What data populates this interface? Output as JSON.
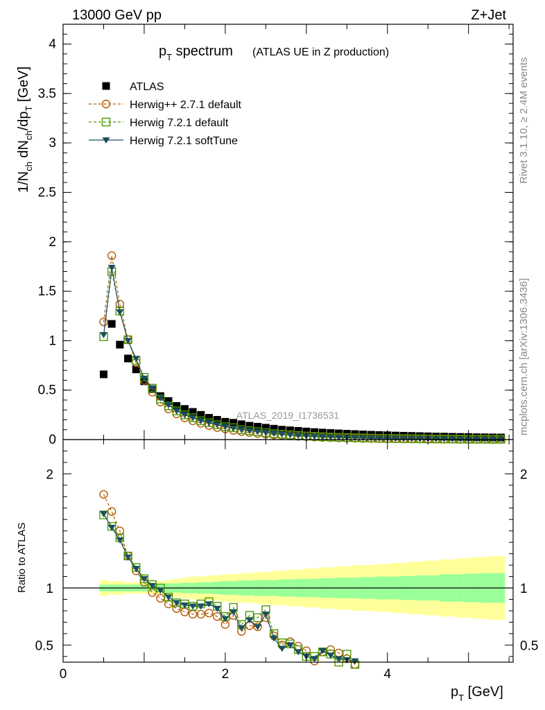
{
  "header": {
    "left": "13000 GeV pp",
    "right": "Z+Jet"
  },
  "side": {
    "rivet": "Rivet 3.1.10, ≥ 2.4M events",
    "mcplots": "mcplots.cern.ch [arXiv:1306.3436]"
  },
  "title": {
    "main": "p",
    "main_sub": "T",
    "main_rest": " spectrum",
    "extra": "(ATLAS UE in Z production)"
  },
  "watermark": "ATLAS_2019_I1736531",
  "axes": {
    "ylabel_main": {
      "a": "1/N",
      "b": "ch",
      "c": " dN",
      "d": "ch",
      "e": "/dp",
      "f": "T",
      "g": " [GeV]"
    },
    "ylabel_ratio": "Ratio to ATLAS",
    "xlabel": {
      "a": "p",
      "b": "T",
      "c": " [GeV]"
    },
    "xlim": [
      0,
      5.55
    ],
    "ylim_main": [
      0,
      4.2
    ],
    "ylim_ratio": [
      0.35,
      2.3
    ],
    "main_ticks": [
      "0",
      "0.5",
      "1",
      "1.5",
      "2",
      "2.5",
      "3",
      "3.5",
      "4"
    ],
    "ratio_ticks": [
      "0.5",
      "1",
      "2"
    ],
    "x_ticks": [
      "0",
      "2",
      "4"
    ]
  },
  "legend": [
    {
      "label": "ATLAS",
      "marker": "square-filled",
      "color": "#000000"
    },
    {
      "label": "Herwig++ 2.7.1 default",
      "marker": "circle-open",
      "color": "#b35900"
    },
    {
      "label": "Herwig 7.2.1 default",
      "marker": "square-open",
      "color": "#4d9900"
    },
    {
      "label": "Herwig 7.2.1 softTune",
      "marker": "triangle-down-filled",
      "color": "#1b4f5f"
    }
  ],
  "colors": {
    "band_outer": "#ffff99",
    "band_inner": "#99ff99"
  },
  "chart_data": {
    "type": "scatter",
    "x": [
      0.5,
      0.6,
      0.7,
      0.8,
      0.9,
      1.0,
      1.1,
      1.2,
      1.3,
      1.4,
      1.5,
      1.6,
      1.7,
      1.8,
      1.9,
      2.0,
      2.1,
      2.2,
      2.3,
      2.4,
      2.5,
      2.6,
      2.7,
      2.8,
      2.9,
      3.0,
      3.1,
      3.2,
      3.3,
      3.4,
      3.5,
      3.6,
      3.7,
      3.8,
      3.9,
      4.0,
      4.1,
      4.2,
      4.3,
      4.4,
      4.5,
      4.6,
      4.7,
      4.8,
      4.9,
      5.0,
      5.1,
      5.2,
      5.3,
      5.4
    ],
    "series": [
      {
        "name": "ATLAS",
        "values": [
          0.66,
          1.17,
          0.96,
          0.82,
          0.71,
          0.59,
          0.51,
          0.44,
          0.39,
          0.34,
          0.31,
          0.28,
          0.25,
          0.22,
          0.2,
          0.18,
          0.17,
          0.155,
          0.14,
          0.13,
          0.12,
          0.11,
          0.1,
          0.094,
          0.088,
          0.082,
          0.076,
          0.071,
          0.067,
          0.063,
          0.059,
          0.056,
          0.052,
          0.049,
          0.046,
          0.044,
          0.041,
          0.039,
          0.037,
          0.035,
          0.033,
          0.031,
          0.03,
          0.028,
          0.027,
          0.026,
          0.024,
          0.023,
          0.022,
          0.021
        ]
      },
      {
        "name": "Herwig++ 2.7.1 default",
        "values": [
          1.19,
          1.86,
          1.37,
          1.01,
          0.78,
          0.6,
          0.48,
          0.38,
          0.31,
          0.26,
          0.22,
          0.19,
          0.165,
          0.142,
          0.122,
          0.108,
          0.093,
          0.082,
          0.071,
          0.062,
          0.055,
          0.048,
          0.042,
          0.037,
          0.033,
          0.029,
          0.025,
          0.022,
          0.02,
          0.018,
          0.016,
          0.014,
          0.012,
          0.011,
          0.01,
          0.009,
          0.008,
          0.007,
          0.006,
          0.006,
          0.005,
          0.005,
          0.004,
          0.004,
          0.003,
          0.003,
          0.003,
          0.002,
          0.002,
          0.002
        ]
      },
      {
        "name": "Herwig 7.2.1 default",
        "values": [
          1.04,
          1.7,
          1.3,
          1.01,
          0.8,
          0.63,
          0.52,
          0.41,
          0.34,
          0.29,
          0.25,
          0.22,
          0.19,
          0.17,
          0.15,
          0.13,
          0.12,
          0.1,
          0.09,
          0.08,
          0.07,
          0.06,
          0.055,
          0.048,
          0.042,
          0.037,
          0.033,
          0.029,
          0.026,
          0.023,
          0.021,
          0.019,
          0.017,
          0.015,
          0.013,
          0.012,
          0.011,
          0.01,
          0.009,
          0.008,
          0.007,
          0.006,
          0.006,
          0.005,
          0.005,
          0.004,
          0.004,
          0.004,
          0.003,
          0.003
        ]
      },
      {
        "name": "Herwig 7.2.1 softTune",
        "values": [
          1.06,
          1.74,
          1.29,
          1.0,
          0.82,
          0.62,
          0.52,
          0.42,
          0.35,
          0.29,
          0.25,
          0.22,
          0.19,
          0.17,
          0.15,
          0.13,
          0.115,
          0.1,
          0.09,
          0.08,
          0.07,
          0.062,
          0.054,
          0.047,
          0.041,
          0.036,
          0.032,
          0.028,
          0.025,
          0.022,
          0.02,
          0.018,
          0.016,
          0.014,
          0.013,
          0.011,
          0.01,
          0.009,
          0.008,
          0.007,
          0.006,
          0.006,
          0.005,
          0.005,
          0.004,
          0.004,
          0.004,
          0.003,
          0.003,
          0.003
        ]
      }
    ],
    "ratio": {
      "x": [
        0.5,
        0.6,
        0.7,
        0.8,
        0.9,
        1.0,
        1.1,
        1.2,
        1.3,
        1.4,
        1.5,
        1.6,
        1.7,
        1.8,
        1.9,
        2.0,
        2.1,
        2.2,
        2.3,
        2.4,
        2.5,
        2.6,
        2.7,
        2.8,
        2.9,
        3.0,
        3.1,
        3.2,
        3.3,
        3.4,
        3.5,
        3.6
      ],
      "series": [
        {
          "name": "Herwig++ 2.7.1 default",
          "values": [
            1.82,
            1.67,
            1.5,
            1.28,
            1.15,
            1.05,
            0.96,
            0.91,
            0.86,
            0.82,
            0.79,
            0.77,
            0.77,
            0.78,
            0.75,
            0.68,
            0.76,
            0.62,
            0.67,
            0.66,
            0.74,
            0.58,
            0.5,
            0.53,
            0.49,
            0.45,
            0.36,
            0.44,
            0.46,
            0.43,
            0.38,
            0.33
          ]
        },
        {
          "name": "Herwig 7.2.1 default",
          "values": [
            1.64,
            1.54,
            1.44,
            1.28,
            1.18,
            1.08,
            1.03,
            1.0,
            0.92,
            0.87,
            0.86,
            0.84,
            0.86,
            0.88,
            0.84,
            0.75,
            0.83,
            0.68,
            0.76,
            0.74,
            0.81,
            0.6,
            0.52,
            0.51,
            0.46,
            0.4,
            0.4,
            0.44,
            0.42,
            0.35,
            0.42,
            0.33
          ]
        },
        {
          "name": "Herwig 7.2.1 softTune",
          "values": [
            1.65,
            1.53,
            1.42,
            1.27,
            1.17,
            1.08,
            1.02,
            0.98,
            0.92,
            0.87,
            0.85,
            0.84,
            0.84,
            0.86,
            0.82,
            0.73,
            0.79,
            0.65,
            0.72,
            0.66,
            0.77,
            0.56,
            0.47,
            0.5,
            0.44,
            0.4,
            0.38,
            0.45,
            0.41,
            0.38,
            0.37,
            0.36
          ]
        }
      ],
      "band_inner": [
        0.03,
        0.03,
        0.03,
        0.03,
        0.03,
        0.03,
        0.03,
        0.035,
        0.04,
        0.04,
        0.045,
        0.045,
        0.05,
        0.05,
        0.055,
        0.06,
        0.06,
        0.065,
        0.065,
        0.07,
        0.07,
        0.07,
        0.075,
        0.075,
        0.08,
        0.08,
        0.08,
        0.085,
        0.085,
        0.09,
        0.09,
        0.09,
        0.095,
        0.095,
        0.1,
        0.1,
        0.1,
        0.105,
        0.105,
        0.11,
        0.11,
        0.11,
        0.12,
        0.12,
        0.12,
        0.125,
        0.125,
        0.13,
        0.13,
        0.13
      ],
      "band_outer": [
        0.07,
        0.06,
        0.06,
        0.05,
        0.05,
        0.05,
        0.05,
        0.06,
        0.07,
        0.08,
        0.09,
        0.1,
        0.1,
        0.11,
        0.11,
        0.12,
        0.12,
        0.13,
        0.13,
        0.14,
        0.14,
        0.15,
        0.15,
        0.16,
        0.16,
        0.17,
        0.17,
        0.18,
        0.18,
        0.19,
        0.19,
        0.2,
        0.2,
        0.2,
        0.21,
        0.21,
        0.22,
        0.22,
        0.23,
        0.23,
        0.24,
        0.24,
        0.25,
        0.25,
        0.26,
        0.26,
        0.27,
        0.27,
        0.28,
        0.28
      ]
    }
  }
}
